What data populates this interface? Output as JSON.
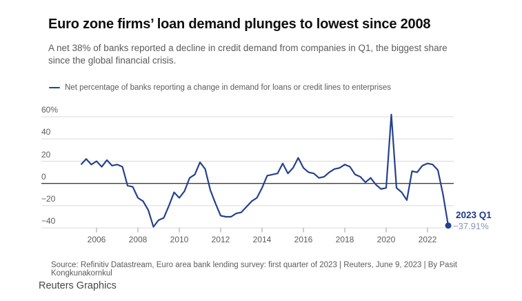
{
  "header": {
    "title": "Euro zone firms’ loan demand plunges to lowest since 2008",
    "subtitle": "A net 38% of banks reported a decline in credit demand from companies in Q1, the biggest share since the global financial crisis."
  },
  "legend": {
    "label": "Net percentage of banks reporting a change in demand for loans or credit lines to enterprises"
  },
  "colors": {
    "line": "#24418e",
    "grid": "#d9d9d9",
    "zero_line": "#3f3f3f",
    "tick": "#9a9a9a",
    "annotation_bold": "#1d3a8f",
    "annotation_value": "#8694b5"
  },
  "chart_data": {
    "type": "line",
    "title": "Net percentage of banks reporting a change in demand for loans or credit lines to enterprises",
    "x_tick_labels": [
      "2006",
      "2008",
      "2010",
      "2012",
      "2014",
      "2016",
      "2018",
      "2020",
      "2022"
    ],
    "y_tick_labels": [
      "60%",
      "40",
      "20",
      "0",
      "−20",
      "−40"
    ],
    "y_ticks": [
      60,
      40,
      20,
      0,
      -20,
      -40
    ],
    "ylim": [
      -48,
      66
    ],
    "grid": true,
    "legend_position": "top-left",
    "quarters": [
      "2005Q2",
      "2005Q3",
      "2005Q4",
      "2006Q1",
      "2006Q2",
      "2006Q3",
      "2006Q4",
      "2007Q1",
      "2007Q2",
      "2007Q3",
      "2007Q4",
      "2008Q1",
      "2008Q2",
      "2008Q3",
      "2008Q4",
      "2009Q1",
      "2009Q2",
      "2009Q3",
      "2009Q4",
      "2010Q1",
      "2010Q2",
      "2010Q3",
      "2010Q4",
      "2011Q1",
      "2011Q2",
      "2011Q3",
      "2011Q4",
      "2012Q1",
      "2012Q2",
      "2012Q3",
      "2012Q4",
      "2013Q1",
      "2013Q2",
      "2013Q3",
      "2013Q4",
      "2014Q1",
      "2014Q2",
      "2014Q3",
      "2014Q4",
      "2015Q1",
      "2015Q2",
      "2015Q3",
      "2015Q4",
      "2016Q1",
      "2016Q2",
      "2016Q3",
      "2016Q4",
      "2017Q1",
      "2017Q2",
      "2017Q3",
      "2017Q4",
      "2018Q1",
      "2018Q2",
      "2018Q3",
      "2018Q4",
      "2019Q1",
      "2019Q2",
      "2019Q3",
      "2019Q4",
      "2020Q1",
      "2020Q2",
      "2020Q3",
      "2020Q4",
      "2021Q1",
      "2021Q2",
      "2021Q3",
      "2021Q4",
      "2022Q1",
      "2022Q2",
      "2022Q3",
      "2022Q4",
      "2023Q1"
    ],
    "values": [
      17,
      22,
      17,
      20,
      15,
      21,
      16,
      17,
      15,
      -2,
      -3,
      -13,
      -16,
      -24,
      -39,
      -33,
      -31,
      -20,
      -8,
      -13,
      -7,
      5,
      8,
      19,
      13,
      -6,
      -18,
      -29,
      -30,
      -30,
      -27,
      -26,
      -21,
      -16,
      -13,
      -4,
      7,
      8,
      9,
      18,
      9,
      14,
      23,
      14,
      10,
      9,
      5,
      6,
      10,
      13,
      14,
      17,
      15,
      8,
      6,
      1,
      5,
      -1,
      -5,
      -4,
      62,
      -4,
      -8,
      -15,
      11,
      10,
      16,
      18,
      17,
      12,
      -10,
      -37.91
    ],
    "annotation": {
      "label": "2023 Q1",
      "value_label": "−37.91%"
    }
  },
  "footer": {
    "source": "Source: Refinitiv Datastream, Euro area bank lending survey: first quarter of 2023 | Reuters, June 9, 2023 | By Pasit Kongkunakornkul",
    "credit": "Reuters Graphics"
  }
}
